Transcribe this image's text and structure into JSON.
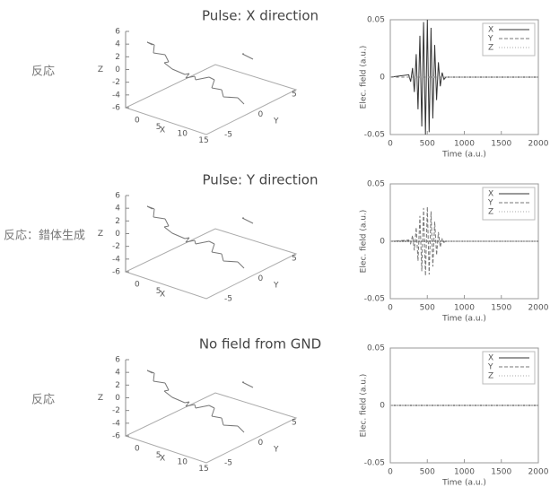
{
  "row_labels": [
    "反応",
    "反応：錯体生成",
    "反応"
  ],
  "molecules": [
    {
      "title": "Pulse: X direction",
      "xlabel": "X",
      "ylabel": "Y",
      "zlabel": "Z",
      "zticks": [
        6,
        4,
        2,
        0,
        -2,
        -4,
        -6
      ],
      "xticks": [
        0,
        5,
        10,
        15
      ],
      "yticks": [
        -5,
        0,
        5
      ]
    },
    {
      "title": "Pulse: Y direction",
      "xlabel": "X",
      "ylabel": "Y",
      "zlabel": "Z",
      "zticks": [
        6,
        4,
        2,
        0,
        -2,
        -4,
        -6
      ],
      "xticks": [
        0,
        5
      ],
      "yticks": [
        -5,
        0,
        5
      ]
    },
    {
      "title": "No field from GND",
      "xlabel": "X",
      "ylabel": "Y",
      "zlabel": "Z",
      "zticks": [
        6,
        4,
        2,
        0,
        -2,
        -4,
        -6
      ],
      "xticks": [
        0,
        5,
        10,
        15
      ],
      "yticks": [
        -5,
        0,
        5
      ]
    }
  ],
  "chart_data": [
    {
      "type": "line",
      "xlabel": "Time (a.u.)",
      "ylabel": "Elec. field (a.u.)",
      "xlim": [
        0,
        2000
      ],
      "xticks": [
        0,
        500,
        1000,
        1500,
        2000
      ],
      "ylim": [
        -0.05,
        0.05
      ],
      "yticks": [
        -0.05,
        0,
        0.05
      ],
      "series": [
        {
          "name": "X",
          "color": "#333333",
          "dash": "none",
          "x": [
            0,
            250,
            275,
            300,
            325,
            350,
            375,
            400,
            425,
            450,
            475,
            500,
            525,
            550,
            575,
            600,
            625,
            650,
            675,
            700,
            725,
            750,
            2000
          ],
          "values": [
            0,
            0.002,
            -0.004,
            0.008,
            -0.013,
            0.02,
            -0.028,
            0.036,
            -0.043,
            0.048,
            -0.05,
            0.05,
            -0.048,
            0.043,
            -0.036,
            0.028,
            -0.02,
            0.013,
            -0.008,
            0.004,
            -0.002,
            0,
            0
          ]
        },
        {
          "name": "Y",
          "color": "#777777",
          "dash": "4 2",
          "x": [
            0,
            2000
          ],
          "values": [
            0,
            0
          ]
        },
        {
          "name": "Z",
          "color": "#aaaaaa",
          "dash": "1 2",
          "x": [
            0,
            2000
          ],
          "values": [
            0,
            0
          ]
        }
      ]
    },
    {
      "type": "line",
      "xlabel": "Time (a.u.)",
      "ylabel": "Elec. field (a.u.)",
      "xlim": [
        0,
        2000
      ],
      "xticks": [
        0,
        500,
        1000,
        1500,
        2000
      ],
      "ylim": [
        -0.05,
        0.05
      ],
      "yticks": [
        -0.05,
        0,
        0.05
      ],
      "series": [
        {
          "name": "X",
          "color": "#333333",
          "dash": "none",
          "x": [
            0,
            2000
          ],
          "values": [
            0,
            0
          ]
        },
        {
          "name": "Y",
          "color": "#777777",
          "dash": "4 2",
          "x": [
            0,
            250,
            275,
            300,
            325,
            350,
            375,
            400,
            425,
            450,
            475,
            500,
            525,
            550,
            575,
            600,
            625,
            650,
            675,
            700,
            725,
            750,
            2000
          ],
          "values": [
            0,
            0.001,
            -0.002,
            0.005,
            -0.008,
            0.012,
            -0.017,
            0.022,
            -0.026,
            0.029,
            -0.03,
            0.03,
            -0.029,
            0.026,
            -0.022,
            0.017,
            -0.012,
            0.008,
            -0.005,
            0.002,
            -0.001,
            0,
            0
          ]
        },
        {
          "name": "Z",
          "color": "#aaaaaa",
          "dash": "1 2",
          "x": [
            0,
            2000
          ],
          "values": [
            0,
            0
          ]
        }
      ]
    },
    {
      "type": "line",
      "xlabel": "Time (a.u.)",
      "ylabel": "Elec. field (a.u.)",
      "xlim": [
        0,
        2000
      ],
      "xticks": [
        0,
        500,
        1000,
        1500,
        2000
      ],
      "ylim": [
        -0.05,
        0.05
      ],
      "yticks": [
        -0.05,
        0,
        0.05
      ],
      "series": [
        {
          "name": "X",
          "color": "#333333",
          "dash": "none",
          "x": [
            0,
            2000
          ],
          "values": [
            0,
            0
          ]
        },
        {
          "name": "Y",
          "color": "#777777",
          "dash": "4 2",
          "x": [
            0,
            2000
          ],
          "values": [
            0,
            0
          ]
        },
        {
          "name": "Z",
          "color": "#aaaaaa",
          "dash": "1 2",
          "x": [
            0,
            2000
          ],
          "values": [
            0,
            0
          ]
        }
      ]
    }
  ]
}
